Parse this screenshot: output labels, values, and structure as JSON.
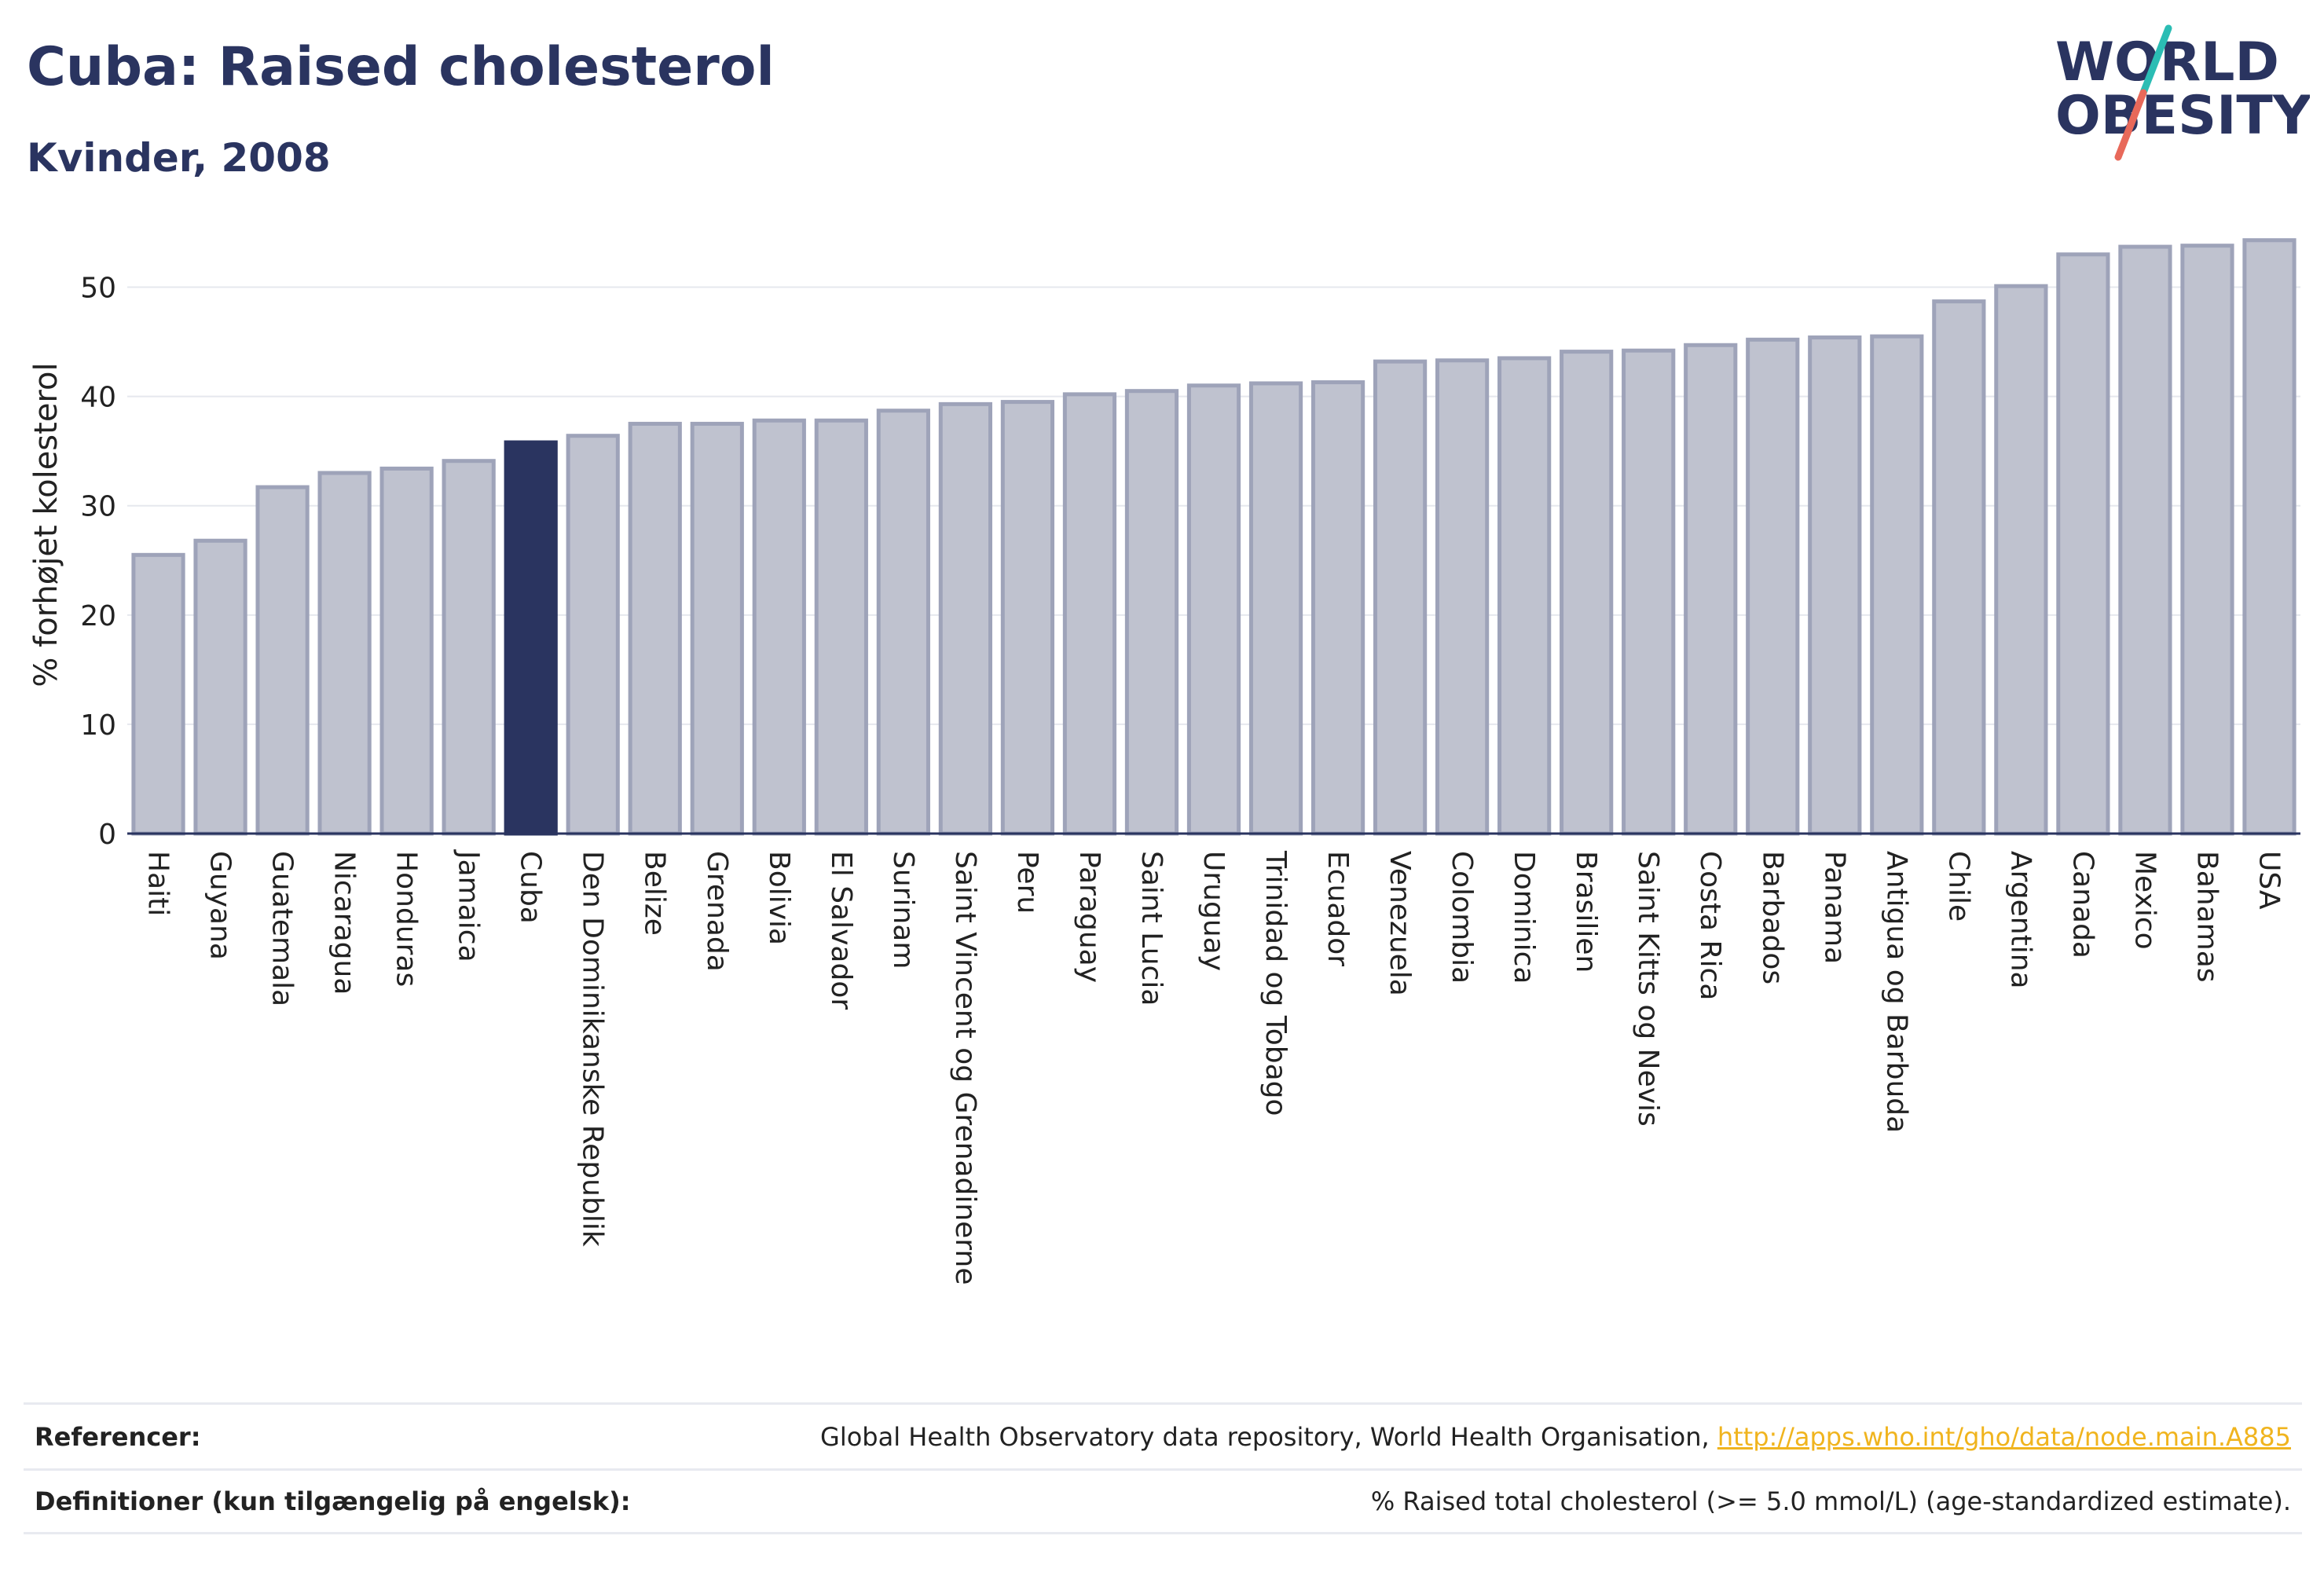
{
  "header": {
    "title": "Cuba: Raised cholesterol",
    "subtitle": "Kvinder, 2008"
  },
  "logo": {
    "line1": "WORLD",
    "line2": "OBESITY",
    "colors": {
      "text": "#2a3460",
      "slash_top": "#2bbdb4",
      "slash_bottom": "#e8695a"
    }
  },
  "chart_data": {
    "type": "bar",
    "title": "Cuba: Raised cholesterol",
    "subtitle": "Kvinder, 2008",
    "ylabel": "% forhøjet kolesterol",
    "xlabel": "",
    "ylim": [
      0,
      55
    ],
    "yticks": [
      0,
      10,
      20,
      30,
      40,
      50
    ],
    "grid": true,
    "highlight": "Cuba",
    "colors": {
      "bar": "#bfc2cf",
      "bar_edge": "#9ea3b9",
      "highlight": "#2a3460"
    },
    "categories": [
      "Haiti",
      "Guyana",
      "Guatemala",
      "Nicaragua",
      "Honduras",
      "Jamaica",
      "Cuba",
      "Den Dominikanske Republik",
      "Belize",
      "Grenada",
      "Bolivia",
      "El Salvador",
      "Surinam",
      "Saint Vincent og Grenadinerne",
      "Peru",
      "Paraguay",
      "Saint Lucia",
      "Uruguay",
      "Trinidad og Tobago",
      "Ecuador",
      "Venezuela",
      "Colombia",
      "Dominica",
      "Brasilien",
      "Saint Kitts og Nevis",
      "Costa Rica",
      "Barbados",
      "Panama",
      "Antigua og Barbuda",
      "Chile",
      "Argentina",
      "Canada",
      "Mexico",
      "Bahamas",
      "USA"
    ],
    "values": [
      25.5,
      26.8,
      31.7,
      33.0,
      33.4,
      34.1,
      35.8,
      36.4,
      37.5,
      37.5,
      37.8,
      37.8,
      38.7,
      39.3,
      39.5,
      40.2,
      40.5,
      41.0,
      41.2,
      41.3,
      43.2,
      43.3,
      43.5,
      44.1,
      44.2,
      44.7,
      45.2,
      45.4,
      45.5,
      48.7,
      50.1,
      53.0,
      53.7,
      53.8,
      54.3
    ]
  },
  "footer": {
    "references_label": "Referencer:",
    "references_text": "Global Health Observatory data repository, World Health Organisation, ",
    "references_link": "http://apps.who.int/gho/data/node.main.A885",
    "definitions_label": "Definitioner (kun tilgængelig på engelsk):",
    "definitions_text": "% Raised total cholesterol (>= 5.0 mmol/L) (age-standardized estimate)."
  }
}
